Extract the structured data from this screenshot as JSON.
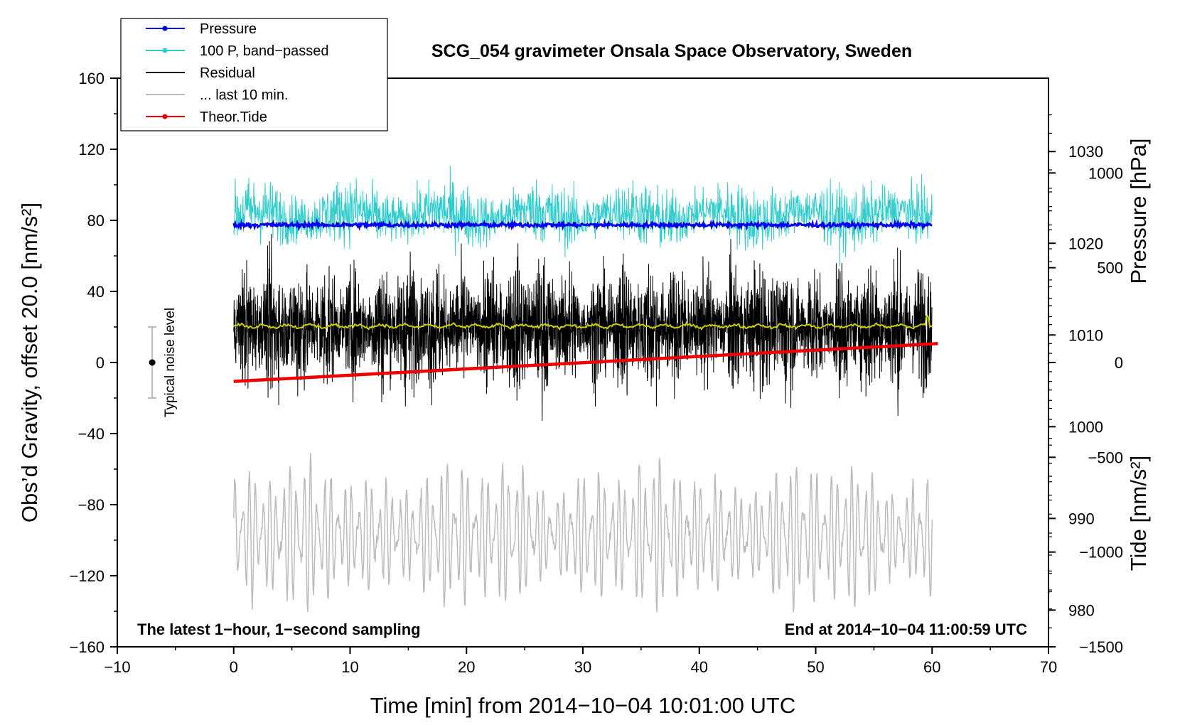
{
  "chart_data": {
    "type": "line",
    "title": "SCG_054 gravimeter Onsala Space Observatory, Sweden",
    "xlabel": "Time [min] from 2014−10−04 10:01:00 UTC",
    "ylabel_left": "Obs’d Gravity, offset 20.0 [nm/s²]",
    "ylabel_right_pressure": "Pressure [hPa]",
    "ylabel_right_tide": "Tide [nm/s²]",
    "xlim": [
      -10,
      70
    ],
    "ylim": [
      -160,
      160
    ],
    "pressure_lim": [
      976,
      1038
    ],
    "tide_lim": [
      -1500,
      1500
    ],
    "x_ticks": [
      "−10",
      "0",
      "10",
      "20",
      "30",
      "40",
      "50",
      "60",
      "70"
    ],
    "y_ticks": [
      "160",
      "120",
      "80",
      "40",
      "0",
      "−40",
      "−80",
      "−120",
      "−160"
    ],
    "pressure_ticks": [
      "1030",
      "1020",
      "1010",
      "1000",
      "990",
      "980"
    ],
    "tide_ticks": [
      "1000",
      "500",
      "0",
      "−500",
      "−1000",
      "−1500"
    ],
    "legend": [
      {
        "label": "Pressure",
        "color": "#0000ee",
        "marker": true
      },
      {
        "label": "100 P, band−passed",
        "color": "#33cccc",
        "marker": true
      },
      {
        "label": "Residual",
        "color": "#000000",
        "marker": false
      },
      {
        "label": "... last 10 min.",
        "color": "#bbbbbb",
        "marker": false
      },
      {
        "label": "Theor.Tide",
        "color": "#ee0000",
        "marker": true
      }
    ],
    "series": [
      {
        "name": "Pressure",
        "axis": "pressure",
        "color": "#0000ee",
        "x_range": [
          0,
          60
        ],
        "level_hPa": 1022,
        "noise_hPa": 0.2
      },
      {
        "name": "100 P, band−passed",
        "axis": "left",
        "color": "#33cccc",
        "x_range": [
          0,
          60
        ],
        "center": 83,
        "amplitude": 12
      },
      {
        "name": "Residual",
        "axis": "left",
        "color": "#000000",
        "x_range": [
          0,
          60
        ],
        "center": 20,
        "amplitude": 30
      },
      {
        "name": "Residual smoothed",
        "axis": "left",
        "color": "#cccc00",
        "x_range": [
          0,
          60
        ],
        "center": 20.5
      },
      {
        "name": "... last 10 min.",
        "axis": "left",
        "color": "#bbbbbb",
        "x_range": [
          0,
          60
        ],
        "center": -97,
        "amplitude": 25
      },
      {
        "name": "Theor.Tide",
        "axis": "tide",
        "color": "#ee0000",
        "x": [
          0,
          60.5
        ],
        "values": [
          -100,
          100
        ]
      }
    ],
    "noise_bar": {
      "label": "Typical noise level",
      "x": -7,
      "center": 0,
      "half_range": 20
    },
    "annotations": {
      "left": "The latest 1−hour, 1−second sampling",
      "right": "End at 2014−10−04 11:00:59 UTC"
    }
  }
}
